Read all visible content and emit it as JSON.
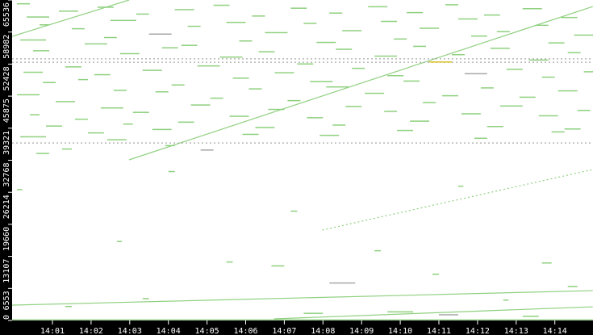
{
  "chart_data": {
    "type": "scatter",
    "title": "",
    "xlabel": "",
    "ylabel": "",
    "xlim": [
      "13:59:57",
      "14:15:00"
    ],
    "ylim": [
      0,
      65536
    ],
    "grid": false,
    "colors": {
      "background": "#ffffff",
      "frame": "#000000",
      "primary": "#8fd07f",
      "secondary": "#a8a8a8",
      "highlight": "#d8c020"
    },
    "x_ticks": [
      "14:01",
      "14:02",
      "14:03",
      "14:04",
      "14:05",
      "14:06",
      "14:07",
      "14:08",
      "14:09",
      "14:10",
      "14:11",
      "14:12",
      "14:13",
      "14:14"
    ],
    "y_ticks": [
      0,
      6553,
      13107,
      19660,
      26214,
      32768,
      39321,
      45875,
      52428,
      58982,
      65536
    ],
    "trend_lines": [
      {
        "start": [
          "13:59:57",
          58100
        ],
        "end": [
          "14:02:59",
          65536
        ],
        "color": "primary",
        "style": "solid"
      },
      {
        "start": [
          "14:02:59",
          32850
        ],
        "end": [
          "14:14:59",
          64200
        ],
        "color": "primary",
        "style": "solid"
      },
      {
        "start": [
          "14:07:59",
          18500
        ],
        "end": [
          "14:14:59",
          30870
        ],
        "color": "primary",
        "style": "dotted"
      },
      {
        "start": [
          "13:59:57",
          3140
        ],
        "end": [
          "14:14:59",
          6100
        ],
        "color": "primary",
        "style": "solid"
      },
      {
        "start": [
          "14:06:44",
          330
        ],
        "end": [
          "14:14:59",
          2800
        ],
        "color": "primary",
        "style": "solid"
      },
      {
        "start": [
          "13:59:57",
          52800
        ],
        "end": [
          "14:14:59",
          52800
        ],
        "color": "secondary",
        "style": "dotted"
      },
      {
        "start": [
          "13:59:57",
          53500
        ],
        "end": [
          "14:14:59",
          53500
        ],
        "color": "secondary",
        "style": "dotted"
      },
      {
        "start": [
          "13:59:57",
          36300
        ],
        "end": [
          "14:14:59",
          36300
        ],
        "color": "secondary",
        "style": "dotted"
      },
      {
        "start": [
          "13:59:57",
          150
        ],
        "end": [
          "14:14:59",
          150
        ],
        "color": "primary",
        "style": "solid"
      }
    ],
    "points": [
      [
        "14:00:05",
        64800,
        20,
        0
      ],
      [
        "14:00:20",
        62100,
        35,
        0
      ],
      [
        "14:00:40",
        60500,
        15,
        0
      ],
      [
        "14:00:10",
        57400,
        40,
        0
      ],
      [
        "14:00:30",
        55200,
        25,
        0
      ],
      [
        "14:00:15",
        50800,
        30,
        0
      ],
      [
        "14:00:45",
        48700,
        20,
        0
      ],
      [
        "14:00:05",
        46200,
        35,
        0
      ],
      [
        "14:00:25",
        42100,
        15,
        0
      ],
      [
        "14:00:50",
        39800,
        25,
        0
      ],
      [
        "14:00:10",
        37600,
        40,
        0
      ],
      [
        "14:00:35",
        34200,
        20,
        0
      ],
      [
        "14:01:10",
        63300,
        30,
        0
      ],
      [
        "14:01:30",
        59700,
        20,
        0
      ],
      [
        "14:01:50",
        56600,
        35,
        0
      ],
      [
        "14:01:20",
        51900,
        25,
        0
      ],
      [
        "14:01:40",
        49300,
        15,
        0
      ],
      [
        "14:01:05",
        44800,
        30,
        0
      ],
      [
        "14:01:35",
        41200,
        20,
        0
      ],
      [
        "14:01:55",
        38400,
        25,
        0
      ],
      [
        "14:01:15",
        35100,
        15,
        0
      ],
      [
        "14:02:10",
        64100,
        25,
        0
      ],
      [
        "14:02:30",
        61400,
        40,
        0
      ],
      [
        "14:02:20",
        57900,
        20,
        0
      ],
      [
        "14:02:45",
        54600,
        30,
        0
      ],
      [
        "14:02:05",
        50300,
        25,
        0
      ],
      [
        "14:02:35",
        47100,
        20,
        0
      ],
      [
        "14:02:15",
        43500,
        35,
        0
      ],
      [
        "14:02:50",
        40200,
        15,
        0
      ],
      [
        "14:02:25",
        37000,
        30,
        0
      ],
      [
        "14:03:10",
        62700,
        20,
        0
      ],
      [
        "14:03:30",
        58600,
        35,
        1
      ],
      [
        "14:03:50",
        55800,
        25,
        0
      ],
      [
        "14:03:20",
        51200,
        30,
        0
      ],
      [
        "14:03:40",
        46800,
        20,
        0
      ],
      [
        "14:03:05",
        42600,
        25,
        0
      ],
      [
        "14:03:35",
        39100,
        30,
        0
      ],
      [
        "14:03:55",
        35800,
        15,
        0
      ],
      [
        "14:04:10",
        63600,
        30,
        0
      ],
      [
        "14:04:30",
        60200,
        20,
        0
      ],
      [
        "14:04:20",
        56300,
        25,
        0
      ],
      [
        "14:04:45",
        52100,
        35,
        0
      ],
      [
        "14:04:05",
        48200,
        20,
        0
      ],
      [
        "14:04:35",
        44100,
        30,
        0
      ],
      [
        "14:04:15",
        40600,
        25,
        0
      ],
      [
        "14:04:50",
        34900,
        20,
        1
      ],
      [
        "14:05:10",
        64500,
        25,
        0
      ],
      [
        "14:05:30",
        61000,
        30,
        0
      ],
      [
        "14:05:50",
        57200,
        20,
        0
      ],
      [
        "14:05:20",
        53900,
        35,
        0
      ],
      [
        "14:05:40",
        49600,
        25,
        0
      ],
      [
        "14:05:05",
        45500,
        20,
        0
      ],
      [
        "14:05:35",
        41800,
        30,
        0
      ],
      [
        "14:05:55",
        38100,
        25,
        0
      ],
      [
        "14:06:10",
        62300,
        20,
        0
      ],
      [
        "14:06:30",
        58900,
        35,
        0
      ],
      [
        "14:06:20",
        55000,
        25,
        0
      ],
      [
        "14:06:45",
        50700,
        30,
        0
      ],
      [
        "14:06:05",
        47400,
        20,
        0
      ],
      [
        "14:06:35",
        43200,
        25,
        0
      ],
      [
        "14:06:15",
        39500,
        30,
        0
      ],
      [
        "14:07:10",
        63900,
        25,
        0
      ],
      [
        "14:07:30",
        60800,
        20,
        0
      ],
      [
        "14:07:50",
        56900,
        30,
        0
      ],
      [
        "14:07:20",
        52500,
        25,
        0
      ],
      [
        "14:07:40",
        48900,
        35,
        0
      ],
      [
        "14:07:05",
        45000,
        20,
        0
      ],
      [
        "14:07:35",
        41500,
        25,
        0
      ],
      [
        "14:07:55",
        37900,
        30,
        0
      ],
      [
        "14:08:10",
        62900,
        20,
        0
      ],
      [
        "14:08:30",
        59300,
        30,
        0
      ],
      [
        "14:08:20",
        55500,
        25,
        0
      ],
      [
        "14:08:45",
        51600,
        20,
        0
      ],
      [
        "14:08:05",
        47800,
        35,
        0
      ],
      [
        "14:08:35",
        43800,
        25,
        0
      ],
      [
        "14:08:15",
        40000,
        20,
        0
      ],
      [
        "14:09:10",
        64200,
        30,
        0
      ],
      [
        "14:09:30",
        61200,
        25,
        0
      ],
      [
        "14:09:50",
        57600,
        20,
        0
      ],
      [
        "14:09:20",
        54100,
        35,
        0
      ],
      [
        "14:09:40",
        50100,
        25,
        0
      ],
      [
        "14:09:05",
        46500,
        30,
        0
      ],
      [
        "14:09:35",
        42800,
        20,
        0
      ],
      [
        "14:09:55",
        38900,
        25,
        0
      ],
      [
        "14:10:10",
        63000,
        25,
        0
      ],
      [
        "14:10:30",
        59800,
        30,
        0
      ],
      [
        "14:10:20",
        56100,
        20,
        0
      ],
      [
        "14:10:45",
        52900,
        35,
        2
      ],
      [
        "14:10:05",
        49000,
        25,
        0
      ],
      [
        "14:10:35",
        44600,
        20,
        0
      ],
      [
        "14:10:15",
        40800,
        30,
        0
      ],
      [
        "14:11:10",
        64600,
        20,
        0
      ],
      [
        "14:11:30",
        61700,
        30,
        0
      ],
      [
        "14:11:50",
        58200,
        25,
        0
      ],
      [
        "14:11:20",
        54400,
        20,
        0
      ],
      [
        "14:11:40",
        50500,
        35,
        1
      ],
      [
        "14:11:05",
        46000,
        25,
        0
      ],
      [
        "14:11:35",
        42300,
        30,
        0
      ],
      [
        "14:11:55",
        37300,
        20,
        0
      ],
      [
        "14:12:10",
        62500,
        25,
        0
      ],
      [
        "14:12:30",
        59100,
        20,
        0
      ],
      [
        "14:12:20",
        55700,
        30,
        0
      ],
      [
        "14:12:45",
        51400,
        25,
        0
      ],
      [
        "14:12:05",
        47600,
        20,
        0
      ],
      [
        "14:12:35",
        43900,
        35,
        0
      ],
      [
        "14:12:15",
        39700,
        25,
        0
      ],
      [
        "14:13:10",
        63800,
        30,
        0
      ],
      [
        "14:13:30",
        60400,
        20,
        0
      ],
      [
        "14:13:50",
        56800,
        25,
        0
      ],
      [
        "14:13:20",
        53300,
        30,
        0
      ],
      [
        "14:13:40",
        49800,
        20,
        0
      ],
      [
        "14:13:05",
        45700,
        25,
        0
      ],
      [
        "14:13:35",
        41900,
        30,
        0
      ],
      [
        "14:13:55",
        38600,
        20,
        0
      ],
      [
        "14:14:10",
        62000,
        25,
        0
      ],
      [
        "14:14:30",
        58400,
        30,
        0
      ],
      [
        "14:14:20",
        54800,
        20,
        0
      ],
      [
        "14:14:45",
        50900,
        25,
        0
      ],
      [
        "14:14:05",
        47000,
        30,
        0
      ],
      [
        "14:14:35",
        43000,
        20,
        0
      ],
      [
        "14:14:15",
        39200,
        25,
        0
      ],
      [
        "14:00:05",
        26800,
        8,
        0
      ],
      [
        "14:04:00",
        30500,
        10,
        0
      ],
      [
        "14:07:10",
        22400,
        10,
        0
      ],
      [
        "14:11:30",
        27500,
        8,
        0
      ],
      [
        "14:02:40",
        16200,
        8,
        0
      ],
      [
        "14:09:20",
        14300,
        10,
        0
      ],
      [
        "14:13:40",
        11800,
        15,
        0
      ],
      [
        "14:05:30",
        12000,
        10,
        0
      ],
      [
        "14:06:40",
        11200,
        20,
        0
      ],
      [
        "14:08:10",
        7700,
        40,
        1
      ],
      [
        "14:10:50",
        9500,
        10,
        0
      ],
      [
        "14:03:20",
        4500,
        10,
        0
      ],
      [
        "14:12:40",
        4200,
        8,
        0
      ],
      [
        "14:14:20",
        7000,
        15,
        0
      ],
      [
        "14:01:20",
        2900,
        10,
        0
      ],
      [
        "14:07:30",
        1500,
        30,
        0
      ],
      [
        "14:09:40",
        1800,
        40,
        0
      ],
      [
        "14:11:00",
        1200,
        30,
        1
      ],
      [
        "14:13:10",
        900,
        25,
        0
      ]
    ]
  }
}
